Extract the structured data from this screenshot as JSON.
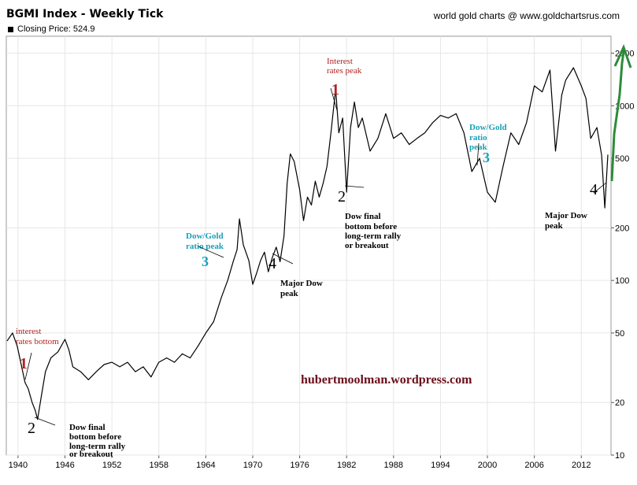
{
  "chart_title": "BGMI Index - Weekly Tick",
  "credit": "world gold charts @ www.goldchartsrus.com",
  "legend_label": "Closing Price: 524.9",
  "watermark": "hubertmoolman.wordpress.com",
  "colors": {
    "series": "#000000",
    "annotation_red": "#b22222",
    "annotation_cyan": "#1aa0b8",
    "arrow_green": "#2e8b3a",
    "watermark": "#6b0f1a"
  },
  "chart_data": {
    "type": "line",
    "scale": "log",
    "xlim": [
      1938.5,
      2015.8
    ],
    "ylim": [
      10,
      2500
    ],
    "x_ticks": [
      1940,
      1946,
      1952,
      1958,
      1964,
      1970,
      1976,
      1982,
      1988,
      1994,
      2000,
      2006,
      2012
    ],
    "y_ticks": [
      10,
      20,
      50,
      100,
      200,
      500,
      1000,
      2000
    ],
    "grid": true,
    "series": [
      {
        "points": [
          [
            1938.6,
            45
          ],
          [
            1939.3,
            50
          ],
          [
            1939.9,
            42
          ],
          [
            1940.4,
            33
          ],
          [
            1940.9,
            26
          ],
          [
            1941.3,
            24
          ],
          [
            1941.8,
            20
          ],
          [
            1942.2,
            18
          ],
          [
            1942.5,
            16
          ],
          [
            1943,
            22
          ],
          [
            1943.5,
            30
          ],
          [
            1944.2,
            36
          ],
          [
            1945.1,
            39
          ],
          [
            1946,
            46
          ],
          [
            1946.5,
            40
          ],
          [
            1947,
            32
          ],
          [
            1948,
            30
          ],
          [
            1949,
            27
          ],
          [
            1950,
            30
          ],
          [
            1951,
            33
          ],
          [
            1952,
            34
          ],
          [
            1953,
            32
          ],
          [
            1954,
            34
          ],
          [
            1955,
            30
          ],
          [
            1956,
            32
          ],
          [
            1957,
            28
          ],
          [
            1958,
            34
          ],
          [
            1959,
            36
          ],
          [
            1960,
            34
          ],
          [
            1961,
            38
          ],
          [
            1962,
            36
          ],
          [
            1963,
            42
          ],
          [
            1964,
            50
          ],
          [
            1965,
            58
          ],
          [
            1966,
            80
          ],
          [
            1966.8,
            100
          ],
          [
            1967.5,
            128
          ],
          [
            1968,
            150
          ],
          [
            1968.3,
            225
          ],
          [
            1968.8,
            160
          ],
          [
            1969.5,
            130
          ],
          [
            1970,
            95
          ],
          [
            1970.5,
            110
          ],
          [
            1971,
            130
          ],
          [
            1971.5,
            145
          ],
          [
            1972,
            112
          ],
          [
            1972.5,
            135
          ],
          [
            1973,
            155
          ],
          [
            1973.5,
            128
          ],
          [
            1974,
            180
          ],
          [
            1974.4,
            360
          ],
          [
            1974.8,
            530
          ],
          [
            1975.3,
            480
          ],
          [
            1976,
            330
          ],
          [
            1976.5,
            220
          ],
          [
            1977,
            300
          ],
          [
            1977.5,
            270
          ],
          [
            1978,
            370
          ],
          [
            1978.5,
            300
          ],
          [
            1979,
            360
          ],
          [
            1979.5,
            450
          ],
          [
            1980,
            700
          ],
          [
            1980.6,
            1250
          ],
          [
            1981,
            700
          ],
          [
            1981.5,
            850
          ],
          [
            1982,
            320
          ],
          [
            1982.5,
            750
          ],
          [
            1983,
            1050
          ],
          [
            1983.5,
            750
          ],
          [
            1984,
            850
          ],
          [
            1985,
            550
          ],
          [
            1986,
            650
          ],
          [
            1987,
            900
          ],
          [
            1988,
            650
          ],
          [
            1989,
            700
          ],
          [
            1990,
            600
          ],
          [
            1991,
            650
          ],
          [
            1992,
            700
          ],
          [
            1993,
            800
          ],
          [
            1994,
            880
          ],
          [
            1995,
            850
          ],
          [
            1996,
            900
          ],
          [
            1997,
            700
          ],
          [
            1998,
            420
          ],
          [
            1999,
            500
          ],
          [
            2000,
            320
          ],
          [
            2001,
            280
          ],
          [
            2002,
            450
          ],
          [
            2003,
            700
          ],
          [
            2004,
            600
          ],
          [
            2005,
            800
          ],
          [
            2006,
            1300
          ],
          [
            2007,
            1200
          ],
          [
            2008,
            1600
          ],
          [
            2008.7,
            550
          ],
          [
            2009.5,
            1150
          ],
          [
            2010,
            1400
          ],
          [
            2011,
            1650
          ],
          [
            2012,
            1300
          ],
          [
            2012.6,
            1100
          ],
          [
            2013.2,
            650
          ],
          [
            2014,
            750
          ],
          [
            2014.6,
            520
          ],
          [
            2015,
            260
          ],
          [
            2015.4,
            525
          ]
        ]
      }
    ],
    "annotations": [
      {
        "text": "interest",
        "color": "red"
      },
      {
        "text": "rates bottom",
        "color": "red"
      },
      {
        "text": "1",
        "color": "red"
      },
      {
        "text": "2",
        "color": "black"
      },
      {
        "text": "Dow final",
        "color": "black"
      },
      {
        "text": "bottom before",
        "color": "black"
      },
      {
        "text": "long-term rally",
        "color": "black"
      },
      {
        "text": "or breakout",
        "color": "black"
      },
      {
        "text": "Dow/Gold",
        "color": "cyan"
      },
      {
        "text": "ratio peak",
        "color": "cyan"
      },
      {
        "text": "3",
        "color": "cyan"
      },
      {
        "text": "4",
        "color": "black"
      },
      {
        "text": "Major Dow",
        "color": "black"
      },
      {
        "text": "peak",
        "color": "black"
      },
      {
        "text": "Interest",
        "color": "red"
      },
      {
        "text": "rates peak",
        "color": "red"
      },
      {
        "text": "1",
        "color": "red"
      },
      {
        "text": "2",
        "color": "black"
      },
      {
        "text": "Dow final",
        "color": "black"
      },
      {
        "text": "bottom before",
        "color": "black"
      },
      {
        "text": "long-term rally",
        "color": "black"
      },
      {
        "text": "or breakout",
        "color": "black"
      },
      {
        "text": "Dow/Gold",
        "color": "cyan"
      },
      {
        "text": "ratio",
        "color": "cyan"
      },
      {
        "text": "peak",
        "color": "cyan"
      },
      {
        "text": "3",
        "color": "cyan"
      },
      {
        "text": "4",
        "color": "black"
      },
      {
        "text": "Major Dow",
        "color": "black"
      },
      {
        "text": "peak",
        "color": "black"
      }
    ]
  }
}
